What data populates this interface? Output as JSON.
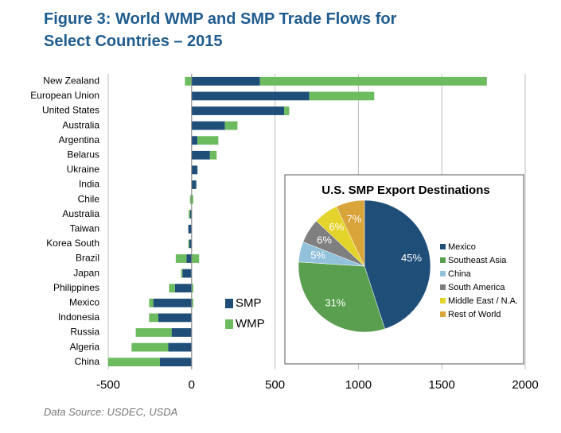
{
  "chart_data": [
    {
      "type": "stacked_bar_horizontal",
      "title": "Figure 3: World WMP and SMP Trade Flows for Select Countries – 2015",
      "source": "Data Source: USDEC, USDA",
      "categories": [
        "New Zealand",
        "European Union",
        "United States",
        "Australia",
        "Argentina",
        "Belarus",
        "Ukraine",
        "India",
        "Chile",
        "Australia",
        "Taiwan",
        "Korea South",
        "Brazil",
        "Japan",
        "Philippines",
        "Mexico",
        "Indonesia",
        "Russia",
        "Algeria",
        "China"
      ],
      "series": [
        {
          "name": "SMP",
          "color": "#1f4e79",
          "values": [
            410,
            705,
            555,
            200,
            35,
            110,
            35,
            28,
            0,
            0,
            0,
            0,
            0,
            0,
            0,
            0,
            0,
            0,
            0,
            0
          ],
          "negative_values": [
            0,
            0,
            0,
            0,
            0,
            0,
            0,
            0,
            0,
            -10,
            -20,
            -15,
            -30,
            -55,
            -100,
            -230,
            -200,
            -120,
            -140,
            -190
          ]
        },
        {
          "name": "WMP",
          "color": "#6dbb5f",
          "values": [
            1360,
            390,
            30,
            75,
            125,
            40,
            0,
            0,
            10,
            0,
            0,
            0,
            45,
            0,
            10,
            10,
            0,
            0,
            0,
            0
          ],
          "negative_values": [
            -40,
            0,
            0,
            0,
            0,
            0,
            0,
            0,
            -10,
            -8,
            0,
            -5,
            -65,
            -8,
            -35,
            -25,
            -55,
            -215,
            -220,
            -310
          ]
        }
      ],
      "xlim": [
        -500,
        2000
      ],
      "xticks": [
        -500,
        0,
        500,
        1000,
        1500,
        2000
      ],
      "grid": true
    },
    {
      "type": "pie",
      "title": "U.S. SMP Export Destinations",
      "categories": [
        "Mexico",
        "Southeast Asia",
        "China",
        "South America",
        "Middle East / N.A.",
        "Rest of World"
      ],
      "values": [
        45,
        31,
        5,
        6,
        6,
        7
      ],
      "value_labels": [
        "45%",
        "31%",
        "5%",
        "6%",
        "6%",
        "7%"
      ],
      "colors": [
        "#1f4e79",
        "#5a9e4f",
        "#92c1dc",
        "#7f7f7f",
        "#e3d32a",
        "#d9a43a"
      ]
    }
  ]
}
